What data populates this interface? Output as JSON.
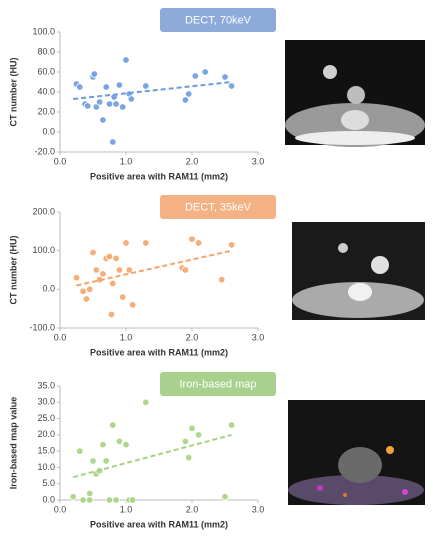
{
  "chart_data": [
    {
      "type": "scatter",
      "title": "DECT, 70keV",
      "xlabel": "Positive area with RAM11 (mm2)",
      "ylabel": "CT number (HU)",
      "color": "#6b9be0",
      "x": [
        0.25,
        0.3,
        0.38,
        0.42,
        0.5,
        0.52,
        0.55,
        0.6,
        0.65,
        0.7,
        0.75,
        0.8,
        0.82,
        0.85,
        0.9,
        0.95,
        1.0,
        1.05,
        1.08,
        1.3,
        1.9,
        1.95,
        2.05,
        2.2,
        2.5,
        2.6
      ],
      "values": [
        48,
        45,
        28,
        26,
        55,
        58,
        25,
        30,
        12,
        45,
        28,
        -10,
        35,
        28,
        47,
        25,
        72,
        38,
        33,
        46,
        32,
        38,
        56,
        60,
        55,
        46
      ],
      "trendline": {
        "x": [
          0.2,
          2.6
        ],
        "values": [
          33,
          50
        ]
      },
      "xlim": [
        0,
        3
      ],
      "xticks": [
        {
          "value": 0,
          "label": "0.0"
        },
        {
          "value": 1,
          "label": "1.0"
        },
        {
          "value": 2,
          "label": "2.0"
        },
        {
          "value": 3,
          "label": "3.0"
        }
      ],
      "ylim": [
        -20,
        100
      ],
      "yticks": [
        {
          "value": -20,
          "label": "-20.0"
        },
        {
          "value": 0,
          "label": "0.0"
        },
        {
          "value": 20,
          "label": "20.0"
        },
        {
          "value": 40,
          "label": "40.0"
        },
        {
          "value": 60,
          "label": "60.0"
        },
        {
          "value": 80,
          "label": "80.0"
        },
        {
          "value": 100,
          "label": "100.0"
        }
      ],
      "banner_color": "#8eaadb"
    },
    {
      "type": "scatter",
      "title": "DECT, 35keV",
      "xlabel": "Positive area with RAM11 (mm2)",
      "ylabel": "CT number (HU)",
      "color": "#f4a46a",
      "x": [
        0.25,
        0.35,
        0.4,
        0.45,
        0.5,
        0.55,
        0.6,
        0.65,
        0.7,
        0.75,
        0.78,
        0.8,
        0.85,
        0.9,
        0.95,
        1.0,
        1.05,
        1.1,
        1.3,
        1.85,
        1.9,
        2.0,
        2.1,
        2.45,
        2.6
      ],
      "values": [
        30,
        -5,
        -25,
        0,
        95,
        50,
        25,
        40,
        80,
        85,
        -65,
        15,
        80,
        50,
        -20,
        120,
        50,
        -40,
        120,
        55,
        50,
        130,
        120,
        25,
        115
      ],
      "trendline": {
        "x": [
          0.25,
          2.6
        ],
        "values": [
          10,
          100
        ]
      },
      "xlim": [
        0,
        3
      ],
      "xticks": [
        {
          "value": 0,
          "label": "0.0"
        },
        {
          "value": 1,
          "label": "1.0"
        },
        {
          "value": 2,
          "label": "2.0"
        },
        {
          "value": 3,
          "label": "3.0"
        }
      ],
      "ylim": [
        -100,
        200
      ],
      "yticks": [
        {
          "value": -100,
          "label": "-100.0"
        },
        {
          "value": 0,
          "label": "0.0"
        },
        {
          "value": 100,
          "label": "100.0"
        },
        {
          "value": 200,
          "label": "200.0"
        }
      ],
      "banner_color": "#f4b183"
    },
    {
      "type": "scatter",
      "title": "Iron-based map",
      "xlabel": "Positive area with RAM11 (mm2)",
      "ylabel": "Iron-based map value",
      "color": "#a6d37f",
      "x": [
        0.2,
        0.3,
        0.35,
        0.45,
        0.45,
        0.5,
        0.55,
        0.6,
        0.65,
        0.7,
        0.75,
        0.8,
        0.85,
        0.9,
        1.0,
        1.05,
        1.1,
        1.3,
        1.9,
        1.95,
        2.0,
        2.1,
        2.5,
        2.6
      ],
      "values": [
        1,
        15,
        0,
        0,
        2,
        12,
        8,
        9,
        17,
        12,
        0,
        23,
        0,
        18,
        17,
        0,
        0,
        30,
        18,
        13,
        22,
        20,
        1,
        23
      ],
      "trendline": {
        "x": [
          0.2,
          2.6
        ],
        "values": [
          7,
          20
        ]
      },
      "xlim": [
        0,
        3
      ],
      "xticks": [
        {
          "value": 0,
          "label": "0.0"
        },
        {
          "value": 1,
          "label": "1.0"
        },
        {
          "value": 2,
          "label": "2.0"
        },
        {
          "value": 3,
          "label": "3.0"
        }
      ],
      "ylim": [
        0,
        35
      ],
      "yticks": [
        {
          "value": 0,
          "label": "0.0"
        },
        {
          "value": 5,
          "label": "5.0"
        },
        {
          "value": 10,
          "label": "10.0"
        },
        {
          "value": 15,
          "label": "15.0"
        },
        {
          "value": 20,
          "label": "20.0"
        },
        {
          "value": 25,
          "label": "25.0"
        },
        {
          "value": 30,
          "label": "30.0"
        },
        {
          "value": 35,
          "label": "35.0"
        }
      ],
      "banner_color": "#a9d18e"
    }
  ]
}
